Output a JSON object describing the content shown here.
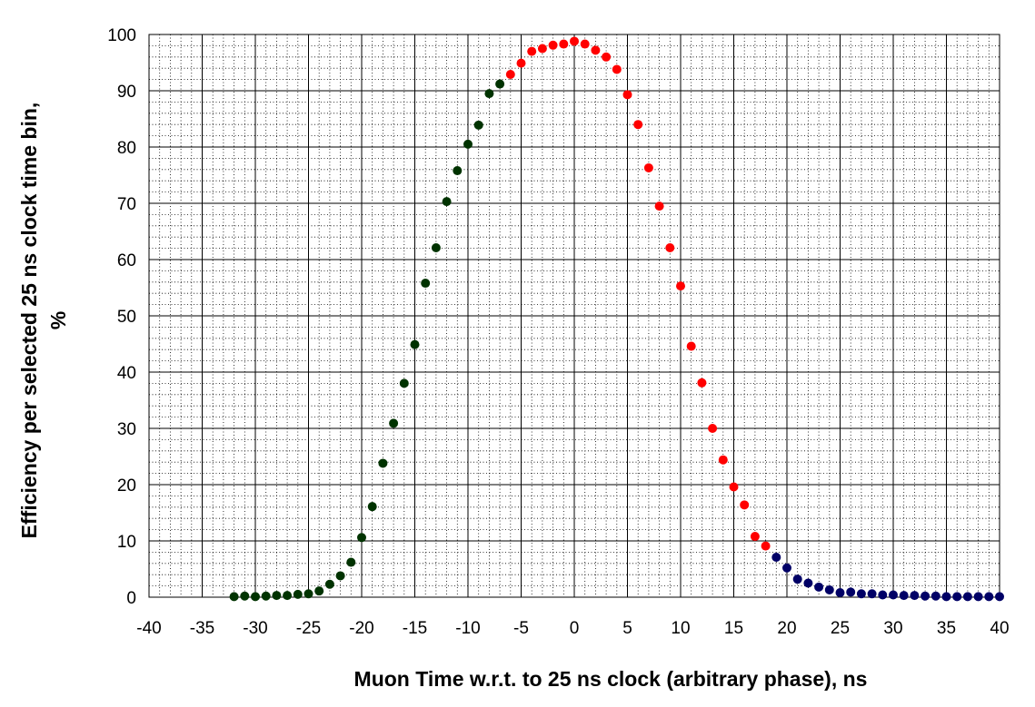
{
  "chart_data": {
    "type": "scatter",
    "title": "",
    "xlabel": "Muon Time w.r.t. to 25 ns clock (arbitrary phase), ns",
    "ylabel_line1": "Efficiency per selected 25 ns clock time bin,",
    "ylabel_line2": "%",
    "xlim": [
      -40,
      40
    ],
    "ylim": [
      0,
      100
    ],
    "x_major_step": 5,
    "y_major_step": 10,
    "x_minor_step": 1,
    "y_minor_step": 2,
    "x_tick_labels": [
      "-40",
      "-35",
      "-30",
      "-25",
      "-20",
      "-15",
      "-10",
      "-5",
      "0",
      "5",
      "10",
      "15",
      "20",
      "25",
      "30",
      "35",
      "40"
    ],
    "y_tick_labels": [
      "0",
      "10",
      "20",
      "30",
      "40",
      "50",
      "60",
      "70",
      "80",
      "90",
      "100"
    ],
    "grid": true,
    "legend": "none",
    "series": [
      {
        "color": "#003300",
        "points": [
          [
            -32,
            0.1
          ],
          [
            -31,
            0.2
          ],
          [
            -30,
            0.1
          ],
          [
            -29,
            0.2
          ],
          [
            -28,
            0.3
          ],
          [
            -27,
            0.3
          ],
          [
            -26,
            0.5
          ],
          [
            -25,
            0.6
          ],
          [
            -24,
            1.1
          ],
          [
            -23,
            2.3
          ],
          [
            -22,
            3.8
          ],
          [
            -21,
            6.2
          ],
          [
            -20,
            10.6
          ],
          [
            -19,
            16.1
          ],
          [
            -18,
            23.8
          ],
          [
            -17,
            30.9
          ],
          [
            -16,
            38.0
          ],
          [
            -15,
            44.9
          ],
          [
            -14,
            55.8
          ],
          [
            -13,
            62.1
          ],
          [
            -12,
            70.3
          ],
          [
            -11,
            75.8
          ],
          [
            -10,
            80.5
          ],
          [
            -9,
            83.9
          ],
          [
            -8,
            89.5
          ],
          [
            -7,
            91.2
          ]
        ]
      },
      {
        "color": "#ff0000",
        "points": [
          [
            -6,
            92.9
          ],
          [
            -5,
            94.9
          ],
          [
            -4,
            97.0
          ],
          [
            -3,
            97.5
          ],
          [
            -2,
            98.1
          ],
          [
            -1,
            98.3
          ],
          [
            0,
            98.8
          ],
          [
            1,
            98.3
          ],
          [
            2,
            97.2
          ],
          [
            3,
            96.0
          ],
          [
            4,
            93.8
          ],
          [
            5,
            89.3
          ],
          [
            6,
            84.0
          ],
          [
            7,
            76.3
          ],
          [
            8,
            69.5
          ],
          [
            9,
            62.1
          ],
          [
            10,
            55.3
          ],
          [
            11,
            44.6
          ],
          [
            12,
            38.1
          ],
          [
            13,
            30.0
          ],
          [
            14,
            24.4
          ],
          [
            15,
            19.6
          ],
          [
            16,
            16.4
          ],
          [
            17,
            10.8
          ],
          [
            18,
            9.1
          ]
        ]
      },
      {
        "color": "#000066",
        "points": [
          [
            19,
            7.1
          ],
          [
            20,
            5.2
          ],
          [
            21,
            3.2
          ],
          [
            22,
            2.5
          ],
          [
            23,
            1.8
          ],
          [
            24,
            1.3
          ],
          [
            25,
            0.8
          ],
          [
            26,
            0.9
          ],
          [
            27,
            0.6
          ],
          [
            28,
            0.6
          ],
          [
            29,
            0.4
          ],
          [
            30,
            0.4
          ],
          [
            31,
            0.3
          ],
          [
            32,
            0.3
          ],
          [
            33,
            0.2
          ],
          [
            34,
            0.2
          ],
          [
            35,
            0.1
          ],
          [
            36,
            0.1
          ],
          [
            37,
            0.1
          ],
          [
            38,
            0.1
          ],
          [
            39,
            0.1
          ],
          [
            40,
            0.1
          ]
        ]
      }
    ]
  }
}
